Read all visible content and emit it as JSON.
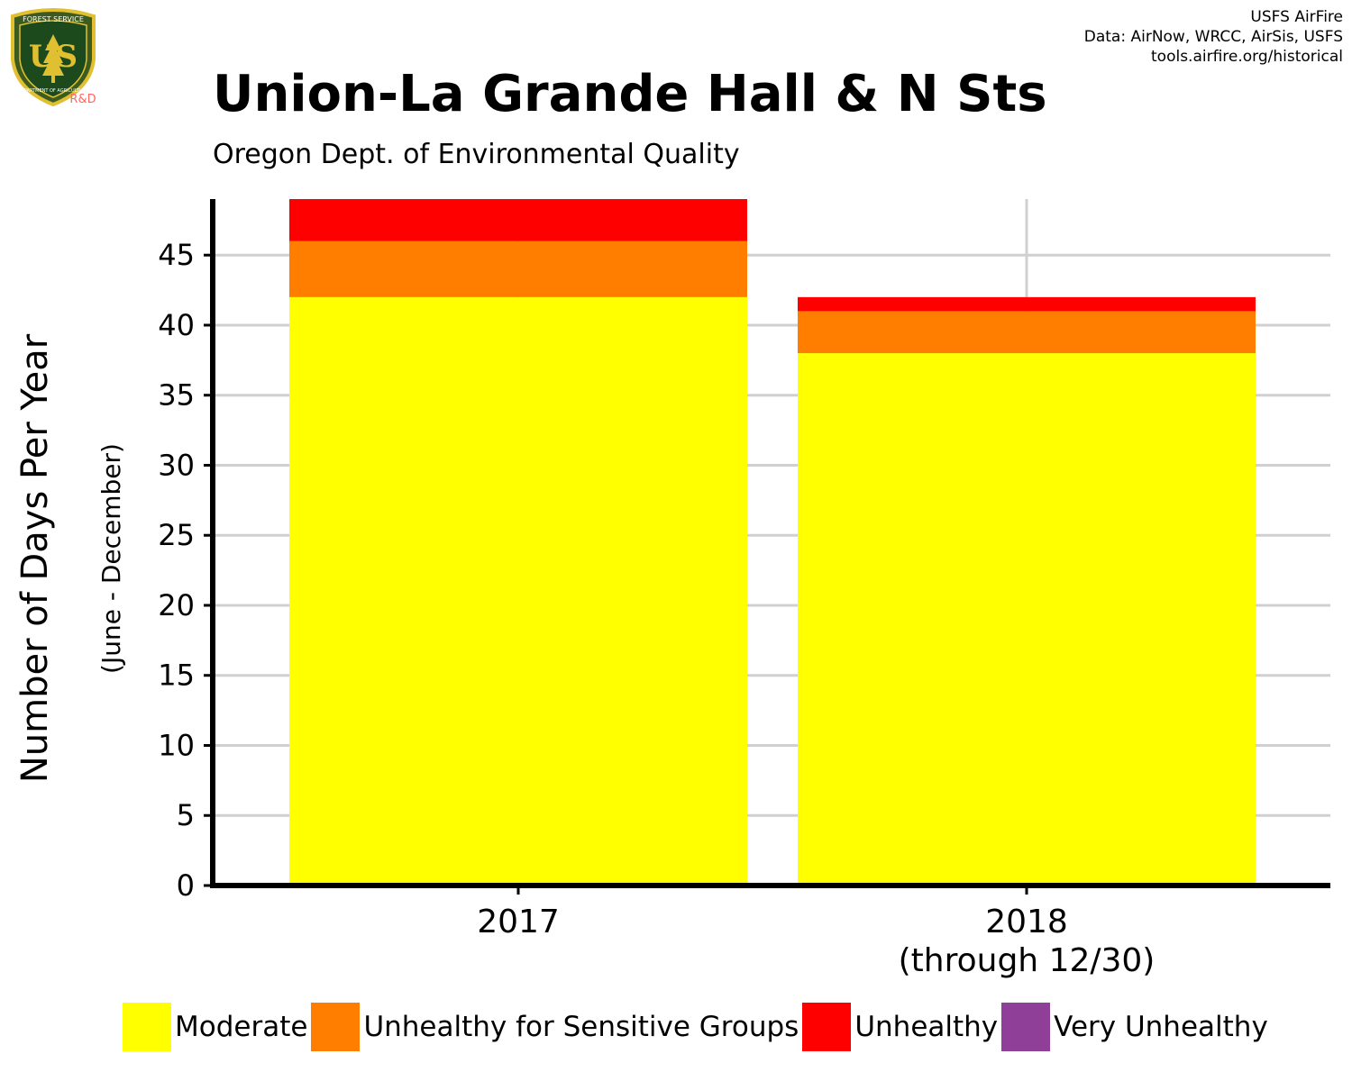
{
  "logo": {
    "text_top": "FOREST SERVICE",
    "text_bottom": "DEPARTMENT OF AGRICULTURE",
    "letters": "US",
    "tag": "R&D"
  },
  "credits": {
    "line1": "USFS AirFire",
    "line2": "Data: AirNow, WRCC, AirSis, USFS",
    "line3": "tools.airfire.org/historical"
  },
  "colors": {
    "moderate": "#ffff00",
    "usg": "#ff7e00",
    "unhealthy": "#ff0000",
    "very_unhealthy": "#8f3f97",
    "grid": "#d0d0d0"
  },
  "chart_data": {
    "type": "bar",
    "stacked": true,
    "title": "Union-La Grande Hall & N Sts",
    "subtitle": "Oregon Dept. of Environmental Quality",
    "ylabel": "Number of Days Per Year",
    "ylabel_sub": "(June - December)",
    "xlabel": "",
    "categories": [
      "2017",
      "2018"
    ],
    "category_sublabels": [
      "",
      "(through 12/30)"
    ],
    "ylim": [
      0,
      49
    ],
    "yticks": [
      0,
      5,
      10,
      15,
      20,
      25,
      30,
      35,
      40,
      45
    ],
    "grid": true,
    "legend_position": "bottom",
    "series": [
      {
        "name": "Moderate",
        "values": [
          42,
          38
        ]
      },
      {
        "name": "Unhealthy for Sensitive Groups",
        "values": [
          4,
          3
        ]
      },
      {
        "name": "Unhealthy",
        "values": [
          3,
          1
        ]
      },
      {
        "name": "Very Unhealthy",
        "values": [
          0,
          0
        ]
      }
    ]
  }
}
